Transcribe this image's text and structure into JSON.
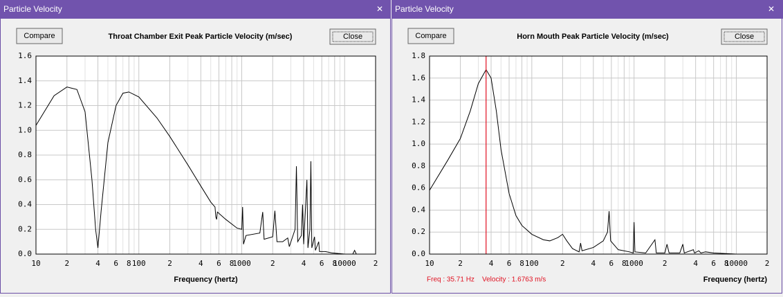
{
  "windows": [
    {
      "title": "Particle Velocity",
      "compare": "Compare",
      "close": "Close"
    },
    {
      "title": "Particle Velocity",
      "compare": "Compare",
      "close": "Close"
    }
  ],
  "chart_data": [
    {
      "type": "line",
      "title": "Throat Chamber Exit Peak Particle Velocity (m/sec)",
      "xlabel": "Frequency (hertz)",
      "xlog": true,
      "grid": true,
      "color": "#000000",
      "xlim": [
        10,
        20000
      ],
      "ylim": [
        0,
        1.6
      ],
      "xticks": [
        10,
        {
          "value": 20,
          "label": "2"
        },
        {
          "value": 40,
          "label": "4"
        },
        {
          "value": 60,
          "label": "6"
        },
        {
          "value": 80,
          "label": "8"
        },
        100,
        {
          "value": 200,
          "label": "2"
        },
        {
          "value": 400,
          "label": "4"
        },
        {
          "value": 600,
          "label": "6"
        },
        {
          "value": 800,
          "label": "8"
        },
        1000,
        {
          "value": 2000,
          "label": "2"
        },
        {
          "value": 4000,
          "label": "4"
        },
        {
          "value": 6000,
          "label": "6"
        },
        {
          "value": 8000,
          "label": "8"
        },
        10000,
        {
          "value": 20000,
          "label": "2"
        }
      ],
      "xminorticks": [
        30,
        50,
        70,
        90,
        300,
        500,
        700,
        900,
        3000,
        5000,
        7000,
        9000
      ],
      "yticks": [
        {
          "value": 0,
          "label": "0.0"
        },
        0.2,
        0.4,
        0.6,
        0.8,
        {
          "value": 1,
          "label": "1.0"
        },
        1.2,
        1.4,
        1.6
      ],
      "x": [
        10,
        15,
        20,
        25,
        30,
        35,
        38,
        40,
        43,
        50,
        60,
        70,
        80,
        100,
        150,
        200,
        300,
        400,
        500,
        550,
        560,
        570,
        580,
        700,
        900,
        1000,
        1020,
        1040,
        1100,
        1500,
        1600,
        1650,
        2000,
        2100,
        2200,
        2500,
        2800,
        2900,
        3300,
        3400,
        3500,
        3800,
        3900,
        4000,
        4300,
        4400,
        4600,
        4700,
        4800,
        5100,
        5200,
        5600,
        5700,
        6500,
        7500,
        10000,
        12000,
        12500,
        13000,
        20000
      ],
      "values": [
        1.04,
        1.28,
        1.35,
        1.33,
        1.15,
        0.6,
        0.2,
        0.05,
        0.35,
        0.9,
        1.2,
        1.3,
        1.31,
        1.27,
        1.1,
        0.95,
        0.72,
        0.55,
        0.42,
        0.38,
        0.3,
        0.28,
        0.34,
        0.28,
        0.21,
        0.2,
        0.38,
        0.08,
        0.15,
        0.17,
        0.34,
        0.12,
        0.14,
        0.35,
        0.1,
        0.1,
        0.13,
        0.06,
        0.2,
        0.71,
        0.1,
        0.15,
        0.4,
        0.08,
        0.6,
        0.05,
        0.2,
        0.75,
        0.05,
        0.14,
        0.03,
        0.1,
        0.02,
        0.02,
        0.01,
        0,
        0,
        0.03,
        0,
        0
      ]
    },
    {
      "type": "line",
      "title": "Horn Mouth Peak Particle Velocity (m/sec)",
      "xlabel": "Frequency (hertz)",
      "xlog": true,
      "grid": true,
      "color": "#000000",
      "xlim": [
        10,
        20000
      ],
      "ylim": [
        0,
        1.8
      ],
      "xticks": [
        10,
        {
          "value": 20,
          "label": "2"
        },
        {
          "value": 40,
          "label": "4"
        },
        {
          "value": 60,
          "label": "6"
        },
        {
          "value": 80,
          "label": "8"
        },
        100,
        {
          "value": 200,
          "label": "2"
        },
        {
          "value": 400,
          "label": "4"
        },
        {
          "value": 600,
          "label": "6"
        },
        {
          "value": 800,
          "label": "8"
        },
        1000,
        {
          "value": 2000,
          "label": "2"
        },
        {
          "value": 4000,
          "label": "4"
        },
        {
          "value": 6000,
          "label": "6"
        },
        {
          "value": 8000,
          "label": "8"
        },
        10000,
        {
          "value": 20000,
          "label": "2"
        }
      ],
      "xminorticks": [
        30,
        50,
        70,
        90,
        300,
        500,
        700,
        900,
        3000,
        5000,
        7000,
        9000
      ],
      "yticks": [
        {
          "value": 0,
          "label": "0.0"
        },
        0.2,
        0.4,
        0.6,
        0.8,
        {
          "value": 1,
          "label": "1.0"
        },
        1.2,
        1.4,
        1.6,
        1.8
      ],
      "cursor_x": 35.71,
      "cursor_color": "#e01020",
      "cursor_text": [
        "Freq : 35.71 Hz",
        "Velocity : 1.6763 m/s"
      ],
      "x": [
        10,
        15,
        20,
        25,
        30,
        35.71,
        40,
        45,
        50,
        60,
        70,
        80,
        100,
        130,
        150,
        180,
        200,
        220,
        250,
        290,
        300,
        310,
        400,
        500,
        550,
        570,
        590,
        700,
        900,
        980,
        1000,
        1020,
        1300,
        1600,
        1650,
        2000,
        2100,
        2200,
        2800,
        3000,
        3100,
        3800,
        3900,
        4300,
        4500,
        5000,
        6000,
        10000,
        20000
      ],
      "values": [
        0.58,
        0.85,
        1.05,
        1.3,
        1.55,
        1.6763,
        1.6,
        1.3,
        0.95,
        0.55,
        0.35,
        0.26,
        0.18,
        0.13,
        0.12,
        0.15,
        0.18,
        0.12,
        0.05,
        0.02,
        0.1,
        0.03,
        0.06,
        0.12,
        0.2,
        0.39,
        0.12,
        0.04,
        0.02,
        0.01,
        0.29,
        0.02,
        0.01,
        0.13,
        0.01,
        0.01,
        0.09,
        0.01,
        0.01,
        0.09,
        0.01,
        0.04,
        0.01,
        0.03,
        0.01,
        0.02,
        0.01,
        0,
        0
      ]
    }
  ]
}
